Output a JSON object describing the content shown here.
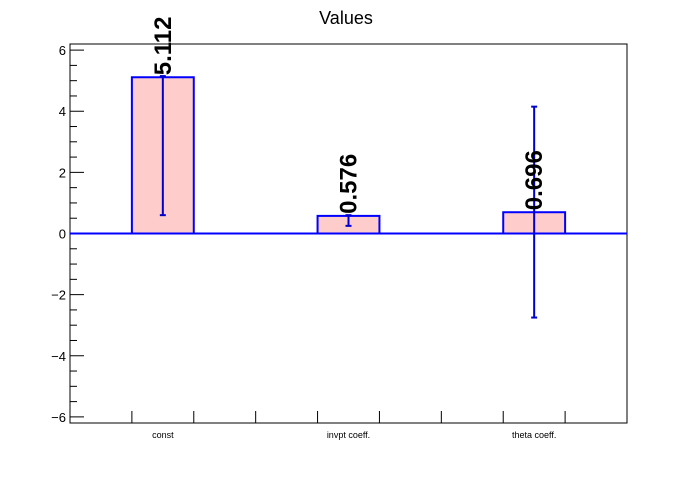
{
  "chart_data": {
    "type": "bar",
    "title": "Values",
    "xlabel": "",
    "ylabel": "",
    "categories": [
      "const",
      "invpt coeff.",
      "theta coeff."
    ],
    "values": [
      5.112,
      0.576,
      0.696
    ],
    "value_labels": [
      "5.112",
      "0.576",
      "0.696"
    ],
    "errors": [
      {
        "low": 0.6,
        "high": 5.15
      },
      {
        "low": 0.25,
        "high": 0.6
      },
      {
        "low": -2.75,
        "high": 4.15
      }
    ],
    "ylim": [
      -6.2,
      6.2
    ],
    "yticks": [
      -6,
      -4,
      -2,
      0,
      2,
      4,
      6
    ],
    "ytick_labels": [
      "−6",
      "−4",
      "−2",
      "0",
      "2",
      "4",
      "6"
    ],
    "grid": false,
    "colors": {
      "bar_fill": "#ffcccc",
      "bar_stroke": "#0000ff",
      "error_bar": "#0000cc",
      "zero_line": "#0000ff",
      "axis": "#000000"
    }
  }
}
